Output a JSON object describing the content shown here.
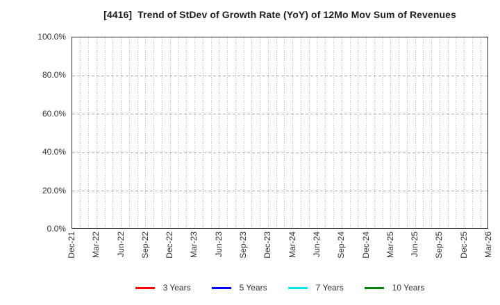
{
  "chart_data": {
    "type": "line",
    "title": "[4416]  Trend of StDev of Growth Rate (YoY) of 12Mo Mov Sum of Revenues",
    "x_tick_labels": [
      "Dec-21",
      "Mar-22",
      "Jun-22",
      "Sep-22",
      "Dec-22",
      "Mar-23",
      "Jun-23",
      "Sep-23",
      "Dec-23",
      "Mar-24",
      "Jun-24",
      "Sep-24",
      "Dec-24",
      "Mar-25",
      "Jun-25",
      "Sep-25",
      "Dec-25",
      "Mar-26"
    ],
    "months_per_x_tick": 3,
    "y_tick_labels": [
      "0.0%",
      "20.0%",
      "40.0%",
      "60.0%",
      "80.0%",
      "100.0%"
    ],
    "y_tick_values": [
      0,
      20,
      40,
      60,
      80,
      100
    ],
    "ylim": [
      0,
      100
    ],
    "grid": true,
    "grid_style": {
      "vertical": "dotted-monthly",
      "horizontal": "dashed",
      "color": "#b5b5b5"
    },
    "axis_frame_color": "#2b2b2b",
    "legend_position": "bottom",
    "series": [
      {
        "name": "3 Years",
        "color": "#ff0000",
        "values": []
      },
      {
        "name": "5 Years",
        "color": "#0000ff",
        "values": []
      },
      {
        "name": "7 Years",
        "color": "#00e5e5",
        "values": []
      },
      {
        "name": "10 Years",
        "color": "#008000",
        "values": []
      }
    ]
  }
}
